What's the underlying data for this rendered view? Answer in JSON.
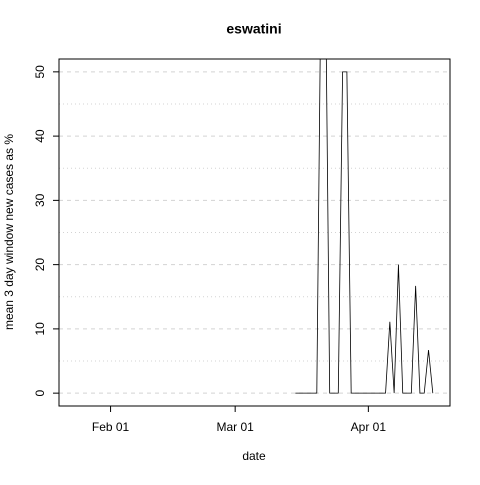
{
  "chart_data": {
    "type": "line",
    "title": "eswatini",
    "xlabel": "date",
    "ylabel": "mean  3  day window new cases as %",
    "x": [
      "03-15",
      "03-16",
      "03-17",
      "03-18",
      "03-19",
      "03-20",
      "03-21",
      "03-22",
      "03-23",
      "03-24",
      "03-25",
      "03-26",
      "03-27",
      "03-28",
      "03-29",
      "03-30",
      "03-31",
      "04-01",
      "04-02",
      "04-03",
      "04-04",
      "04-05",
      "04-06",
      "04-07",
      "04-08",
      "04-09",
      "04-10",
      "04-11",
      "04-12",
      "04-13",
      "04-14",
      "04-15",
      "04-16"
    ],
    "series": [
      {
        "color": "#000000",
        "values": [
          0,
          0,
          0,
          0,
          0,
          0,
          66.7,
          66.7,
          0,
          0,
          0,
          50,
          50,
          0,
          0,
          0,
          0,
          0,
          0,
          0,
          0,
          0,
          11.1,
          0,
          20,
          0,
          0,
          0,
          16.7,
          0,
          0,
          6.7,
          0
        ]
      }
    ],
    "xlim": [
      "01-20",
      "04-20"
    ],
    "xticks": [
      {
        "value": "02-01",
        "label": "Feb 01"
      },
      {
        "value": "03-01",
        "label": "Mar 01"
      },
      {
        "value": "04-01",
        "label": "Apr 01"
      }
    ],
    "ylim": [
      -2,
      52
    ],
    "yticks": [
      0,
      10,
      20,
      30,
      40,
      50
    ],
    "minor_yticks": [
      5,
      15,
      25,
      35,
      45
    ],
    "grid": true
  }
}
